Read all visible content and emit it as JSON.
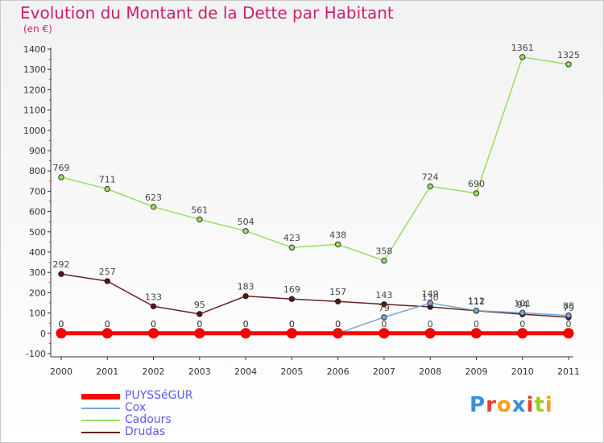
{
  "title": "Evolution du Montant de la Dette par Habitant",
  "unit_label": "(en €)",
  "logo": {
    "text": "Proxiti",
    "colors": [
      "#3a8fd8",
      "#e0402a",
      "#f0a020",
      "#3a8fd8",
      "#e0402a",
      "#9acd32",
      "#f0a020"
    ]
  },
  "chart_data": {
    "type": "line",
    "categories": [
      "2000",
      "2001",
      "2002",
      "2003",
      "2004",
      "2005",
      "2006",
      "2007",
      "2008",
      "2009",
      "2010",
      "2011"
    ],
    "ylim": [
      -100,
      1400
    ],
    "yticks": [
      -100,
      0,
      100,
      200,
      300,
      400,
      500,
      600,
      700,
      800,
      900,
      1000,
      1100,
      1200,
      1300,
      1400
    ],
    "grid": false,
    "legend_position": "bottom-left",
    "series": [
      {
        "name": "PUYSSéGUR",
        "color": "#ff0000",
        "values": [
          0,
          0,
          0,
          0,
          0,
          0,
          0,
          0,
          0,
          0,
          0,
          0
        ],
        "labels": [
          "0",
          "0",
          "0",
          "0",
          "0",
          "0",
          "0",
          "0",
          "0",
          "0",
          "0",
          "0"
        ]
      },
      {
        "name": "Cox",
        "color": "#78a8d8",
        "values": [
          0,
          0,
          0,
          0,
          0,
          0,
          0,
          79,
          149,
          112,
          101,
          88
        ],
        "labels": [
          "0",
          "0",
          "0",
          "0",
          "0",
          "0",
          "0",
          "79",
          "149",
          "112",
          "101",
          "88"
        ]
      },
      {
        "name": "Cadours",
        "color": "#99dd66",
        "values": [
          769,
          711,
          623,
          561,
          504,
          423,
          438,
          358,
          724,
          690,
          1361,
          1325
        ],
        "labels": [
          "769",
          "711",
          "623",
          "561",
          "504",
          "423",
          "438",
          "358",
          "724",
          "690",
          "1361",
          "1325"
        ]
      },
      {
        "name": "Drudas",
        "color": "#6b2020",
        "values": [
          292,
          257,
          133,
          95,
          183,
          169,
          157,
          143,
          130,
          111,
          94,
          79
        ],
        "labels": [
          "292",
          "257",
          "133",
          "95",
          "183",
          "169",
          "157",
          "143",
          "130",
          "111",
          "94",
          "79"
        ]
      }
    ]
  }
}
